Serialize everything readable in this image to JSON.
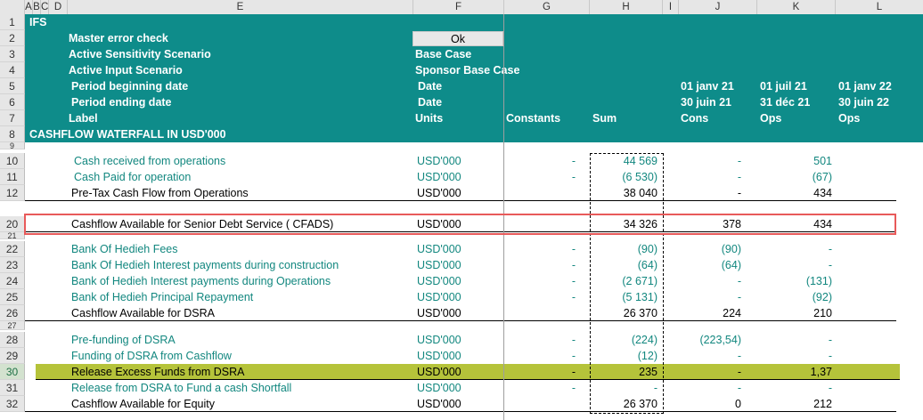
{
  "column_headers": [
    "A",
    "B",
    "C",
    "D",
    "E",
    "F",
    "G",
    "H",
    "I",
    "J",
    "K",
    "L"
  ],
  "header_rows": [
    {
      "row": "1",
      "label": "IFS",
      "value": "",
      "extra": ""
    },
    {
      "row": "2",
      "label": "Master error check",
      "value": "Ok",
      "extra": ""
    },
    {
      "row": "3",
      "label": "Active Sensitivity Scenario",
      "value": "Base Case",
      "extra": ""
    },
    {
      "row": "4",
      "label": "Active Input Scenario",
      "value": "Sponsor Base Case",
      "extra": ""
    },
    {
      "row": "5",
      "label": "Period beginning date",
      "value": "Date",
      "extra": ""
    },
    {
      "row": "6",
      "label": "Period ending date",
      "value": "Date",
      "extra": ""
    },
    {
      "row": "7",
      "label": "Label",
      "value": "Units",
      "extra": ""
    },
    {
      "row": "8",
      "label": "CASHFLOW WATERFALL IN USD'000",
      "value": "",
      "extra": ""
    }
  ],
  "header_extras": {
    "row7_constants": "Constants",
    "row7_sum": "Sum",
    "row5": [
      "01 janv 21",
      "01 juil 21",
      "01 janv 22"
    ],
    "row6": [
      "30 juin 21",
      "31 déc 21",
      "30 juin 22"
    ],
    "row7_periods": [
      "Cons",
      "Ops",
      "Ops"
    ]
  },
  "rows": [
    {
      "row": "9",
      "label": "",
      "units": "",
      "g": "",
      "h": "",
      "j": "",
      "k": ""
    },
    {
      "row": "10",
      "label": "Cash received from operations",
      "units": "USD'000",
      "g": "-",
      "h": "44 569",
      "j": "-",
      "k": "501"
    },
    {
      "row": "11",
      "label": "Cash Paid for operation",
      "units": "USD'000",
      "g": "-",
      "h": "(6 530)",
      "j": "-",
      "k": "(67)"
    },
    {
      "row": "12",
      "label": "Pre-Tax Cash Flow from Operations",
      "units": "USD'000",
      "g": "",
      "h": "38 040",
      "j": "-",
      "k": "434"
    },
    {
      "row": "20",
      "label": "Cashflow Available for Senior Debt Service ( CFADS)",
      "units": "USD'000",
      "g": "",
      "h": "34 326",
      "j": "378",
      "k": "434"
    },
    {
      "row": "21",
      "label": "",
      "units": "",
      "g": "",
      "h": "",
      "j": "",
      "k": ""
    },
    {
      "row": "22",
      "label": "Bank Of Hedieh  Fees",
      "units": "USD'000",
      "g": "-",
      "h": "(90)",
      "j": "(90)",
      "k": "-"
    },
    {
      "row": "23",
      "label": "Bank Of Hedieh  Interest payments during construction",
      "units": "USD'000",
      "g": "-",
      "h": "(64)",
      "j": "(64)",
      "k": "-"
    },
    {
      "row": "24",
      "label": "Bank of Hedieh  Interest payments during Operations",
      "units": "USD'000",
      "g": "-",
      "h": "(2 671)",
      "j": "-",
      "k": "(131)"
    },
    {
      "row": "25",
      "label": "Bank of Hedieh  Principal Repayment",
      "units": "USD'000",
      "g": "-",
      "h": "(5 131)",
      "j": "-",
      "k": "(92)"
    },
    {
      "row": "26",
      "label": "Cashflow Available for DSRA",
      "units": "USD'000",
      "g": "",
      "h": "26 370",
      "j": "224",
      "k": "210"
    },
    {
      "row": "27",
      "label": "",
      "units": "",
      "g": "",
      "h": "",
      "j": "",
      "k": ""
    },
    {
      "row": "28",
      "label": "Pre-funding of DSRA",
      "units": "USD'000",
      "g": "-",
      "h": "(224)",
      "j": "(223,54)",
      "k": "-"
    },
    {
      "row": "29",
      "label": "Funding of DSRA from Cashflow",
      "units": "USD'000",
      "g": "-",
      "h": "(12)",
      "j": "-",
      "k": "-"
    },
    {
      "row": "30",
      "label": "Release Excess Funds from DSRA",
      "units": "USD'000",
      "g": "-",
      "h": "235",
      "j": "-",
      "k": "1,37"
    },
    {
      "row": "31",
      "label": "Release from DSRA to Fund a cash Shortfall",
      "units": "USD'000",
      "g": "-",
      "h": "-",
      "j": "-",
      "k": "-"
    },
    {
      "row": "32",
      "label": "Cashflow Available for Equity",
      "units": "USD'000",
      "g": "",
      "h": "26 370",
      "j": "0",
      "k": "212"
    }
  ],
  "colors": {
    "header_teal": "#0e8c8a",
    "teal_text": "#12877f",
    "highlight": "#b5c33a",
    "callout": "#e85a5a"
  }
}
